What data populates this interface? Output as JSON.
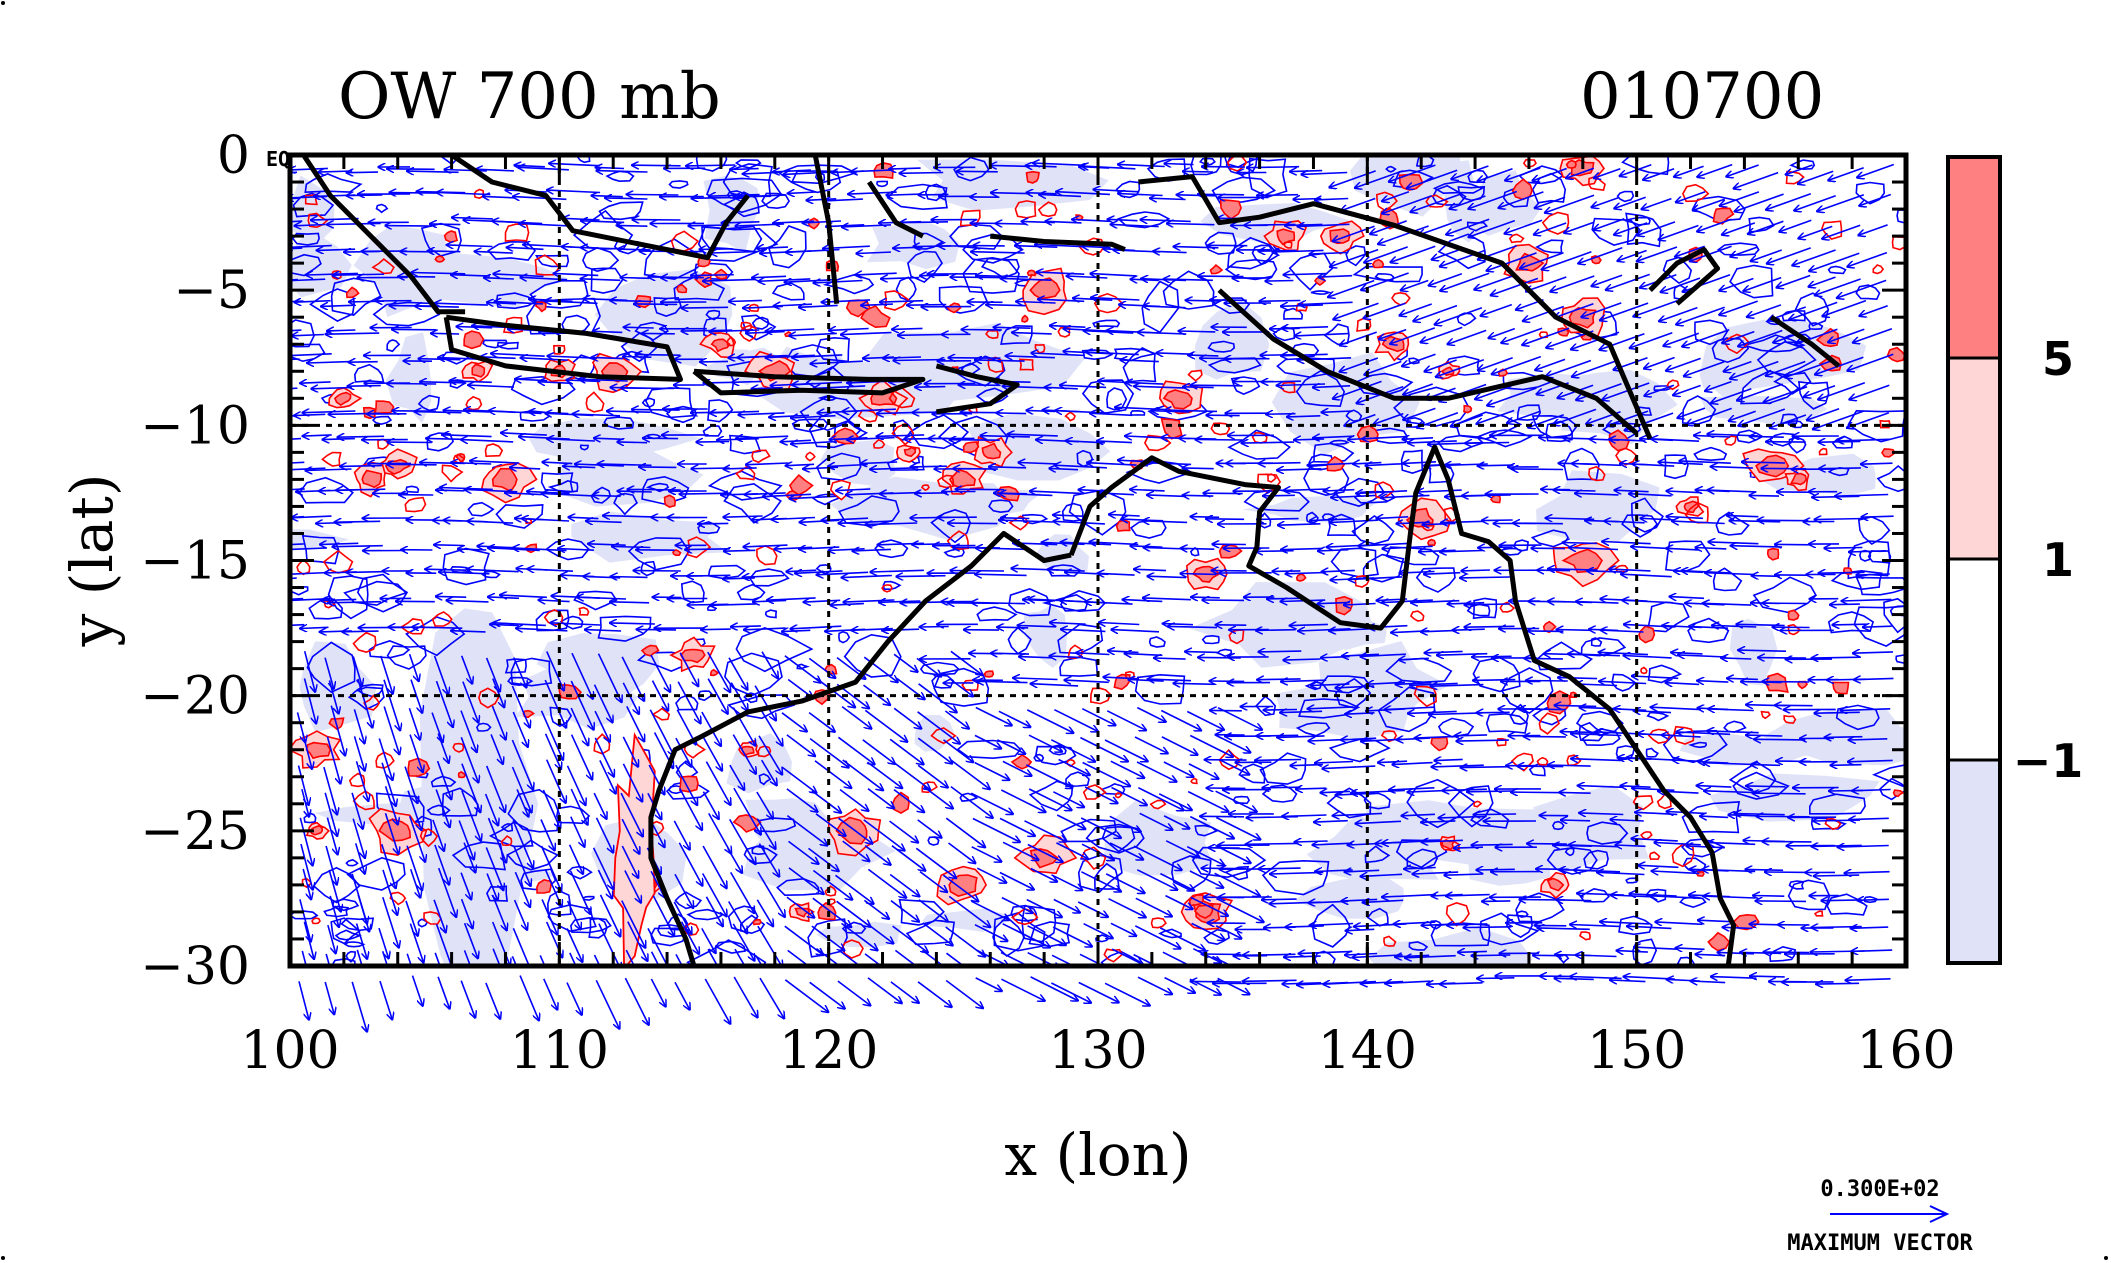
{
  "title_left": "OW 700 mb",
  "title_right": "010700",
  "corner_label": "EQ",
  "x_axis": {
    "label": "x (lon)",
    "ticks": [
      "100",
      "110",
      "120",
      "130",
      "140",
      "150",
      "160"
    ],
    "range": [
      100,
      160
    ]
  },
  "y_axis": {
    "label": "y (lat)",
    "ticks": [
      "0",
      "−5",
      "−10",
      "−15",
      "−20",
      "−25",
      "−30"
    ],
    "range": [
      -30,
      0
    ]
  },
  "colorbar": {
    "labels": [
      "5",
      "1",
      "−1"
    ],
    "colors": [
      "#ff8080",
      "#ffd6d6",
      "#ffffff",
      "#e0e3f7"
    ]
  },
  "vector_key": {
    "value": "0.300E+02",
    "caption": "MAXIMUM VECTOR"
  },
  "colors": {
    "positive_contour": "#ff0000",
    "negative_contour": "#0000ff",
    "vector": "#0000ff",
    "coast": "#000000"
  },
  "chart_data": {
    "type": "map",
    "x_range": [
      100,
      160
    ],
    "y_range": [
      -30,
      0
    ],
    "gridlines_lon": [
      110,
      120,
      130,
      140,
      150
    ],
    "gridlines_lat": [
      -10,
      -20
    ],
    "contour_levels": [
      -1,
      1,
      5
    ],
    "coastline_segments": [
      [
        [
          100.5,
          0
        ],
        [
          101.5,
          -1.5
        ],
        [
          103.0,
          -3.0
        ],
        [
          104.5,
          -4.5
        ],
        [
          105.5,
          -5.8
        ],
        [
          106.5,
          -5.8
        ]
      ],
      [
        [
          106.0,
          0
        ],
        [
          107.5,
          -1.0
        ],
        [
          109.5,
          -1.5
        ],
        [
          110.5,
          -2.8
        ],
        [
          113.0,
          -3.3
        ],
        [
          115.5,
          -3.8
        ],
        [
          116.2,
          -2.5
        ],
        [
          117.0,
          -1.5
        ]
      ],
      [
        [
          105.8,
          -6.0
        ],
        [
          108.0,
          -6.3
        ],
        [
          111.0,
          -6.6
        ],
        [
          114.0,
          -7.1
        ],
        [
          114.5,
          -8.3
        ],
        [
          111.5,
          -8.2
        ],
        [
          108.0,
          -7.8
        ],
        [
          106.0,
          -7.2
        ],
        [
          105.8,
          -6.0
        ]
      ],
      [
        [
          115.0,
          -8.0
        ],
        [
          118.0,
          -8.2
        ],
        [
          121.5,
          -8.3
        ],
        [
          123.5,
          -8.3
        ],
        [
          122.0,
          -8.8
        ],
        [
          119.0,
          -8.7
        ],
        [
          116.0,
          -8.8
        ],
        [
          115.0,
          -8.0
        ]
      ],
      [
        [
          119.5,
          0
        ],
        [
          120.0,
          -2.5
        ],
        [
          120.3,
          -5.5
        ]
      ],
      [
        [
          121.5,
          -1.0
        ],
        [
          122.5,
          -2.5
        ],
        [
          123.5,
          -3.0
        ]
      ],
      [
        [
          124.0,
          -7.8
        ],
        [
          125.5,
          -8.2
        ],
        [
          127.0,
          -8.5
        ],
        [
          126.0,
          -9.2
        ],
        [
          124.0,
          -9.5
        ]
      ],
      [
        [
          126.0,
          -3.0
        ],
        [
          128.0,
          -3.2
        ],
        [
          130.5,
          -3.3
        ],
        [
          131.0,
          -3.5
        ]
      ],
      [
        [
          131.5,
          -1.0
        ],
        [
          133.5,
          -0.8
        ],
        [
          134.5,
          -2.5
        ],
        [
          136.0,
          -2.3
        ],
        [
          138.0,
          -1.8
        ],
        [
          141.0,
          -2.6
        ],
        [
          145.0,
          -4.0
        ],
        [
          147.0,
          -6.0
        ],
        [
          149.0,
          -7.0
        ],
        [
          150.5,
          -10.5
        ]
      ],
      [
        [
          134.5,
          -5.0
        ],
        [
          136.5,
          -6.8
        ],
        [
          138.5,
          -8.0
        ],
        [
          141.0,
          -9.0
        ],
        [
          143.0,
          -9.0
        ],
        [
          146.5,
          -8.2
        ],
        [
          148.5,
          -9.0
        ],
        [
          150.0,
          -10.3
        ]
      ],
      [
        [
          150.5,
          -5.0
        ],
        [
          151.5,
          -4.0
        ],
        [
          152.5,
          -3.5
        ],
        [
          153.0,
          -4.2
        ],
        [
          151.5,
          -5.5
        ]
      ],
      [
        [
          155.0,
          -6.0
        ],
        [
          156.5,
          -7.0
        ],
        [
          157.5,
          -7.8
        ]
      ],
      [
        [
          129.0,
          -14.8
        ],
        [
          129.7,
          -13.0
        ],
        [
          130.5,
          -12.3
        ],
        [
          132.0,
          -11.2
        ],
        [
          133.0,
          -11.7
        ],
        [
          135.5,
          -12.2
        ],
        [
          136.7,
          -12.3
        ],
        [
          136.0,
          -13.2
        ],
        [
          135.9,
          -14.5
        ],
        [
          135.6,
          -15.2
        ],
        [
          137.0,
          -16.0
        ],
        [
          139.0,
          -17.3
        ],
        [
          140.5,
          -17.5
        ],
        [
          141.3,
          -16.5
        ],
        [
          141.6,
          -14.0
        ],
        [
          141.8,
          -12.5
        ],
        [
          142.5,
          -10.8
        ],
        [
          143.0,
          -12.0
        ],
        [
          143.5,
          -14.0
        ],
        [
          144.5,
          -14.3
        ],
        [
          145.3,
          -15.0
        ],
        [
          145.5,
          -16.5
        ],
        [
          146.2,
          -18.7
        ],
        [
          147.5,
          -19.3
        ],
        [
          149.0,
          -20.5
        ],
        [
          150.0,
          -22.0
        ],
        [
          151.0,
          -23.5
        ],
        [
          152.0,
          -24.5
        ],
        [
          152.8,
          -25.8
        ],
        [
          153.1,
          -27.5
        ],
        [
          153.6,
          -28.5
        ],
        [
          153.4,
          -30.0
        ]
      ],
      [
        [
          129.0,
          -14.8
        ],
        [
          128.0,
          -15.0
        ],
        [
          126.5,
          -14.0
        ],
        [
          125.3,
          -15.2
        ],
        [
          123.6,
          -16.5
        ],
        [
          122.2,
          -18.0
        ],
        [
          121.0,
          -19.5
        ],
        [
          119.0,
          -20.2
        ],
        [
          117.0,
          -20.6
        ],
        [
          115.3,
          -21.5
        ],
        [
          114.3,
          -22.0
        ],
        [
          113.7,
          -23.5
        ],
        [
          113.4,
          -24.5
        ],
        [
          113.4,
          -26.0
        ],
        [
          114.0,
          -27.5
        ],
        [
          114.7,
          -29.0
        ],
        [
          115.0,
          -30.0
        ]
      ]
    ]
  }
}
